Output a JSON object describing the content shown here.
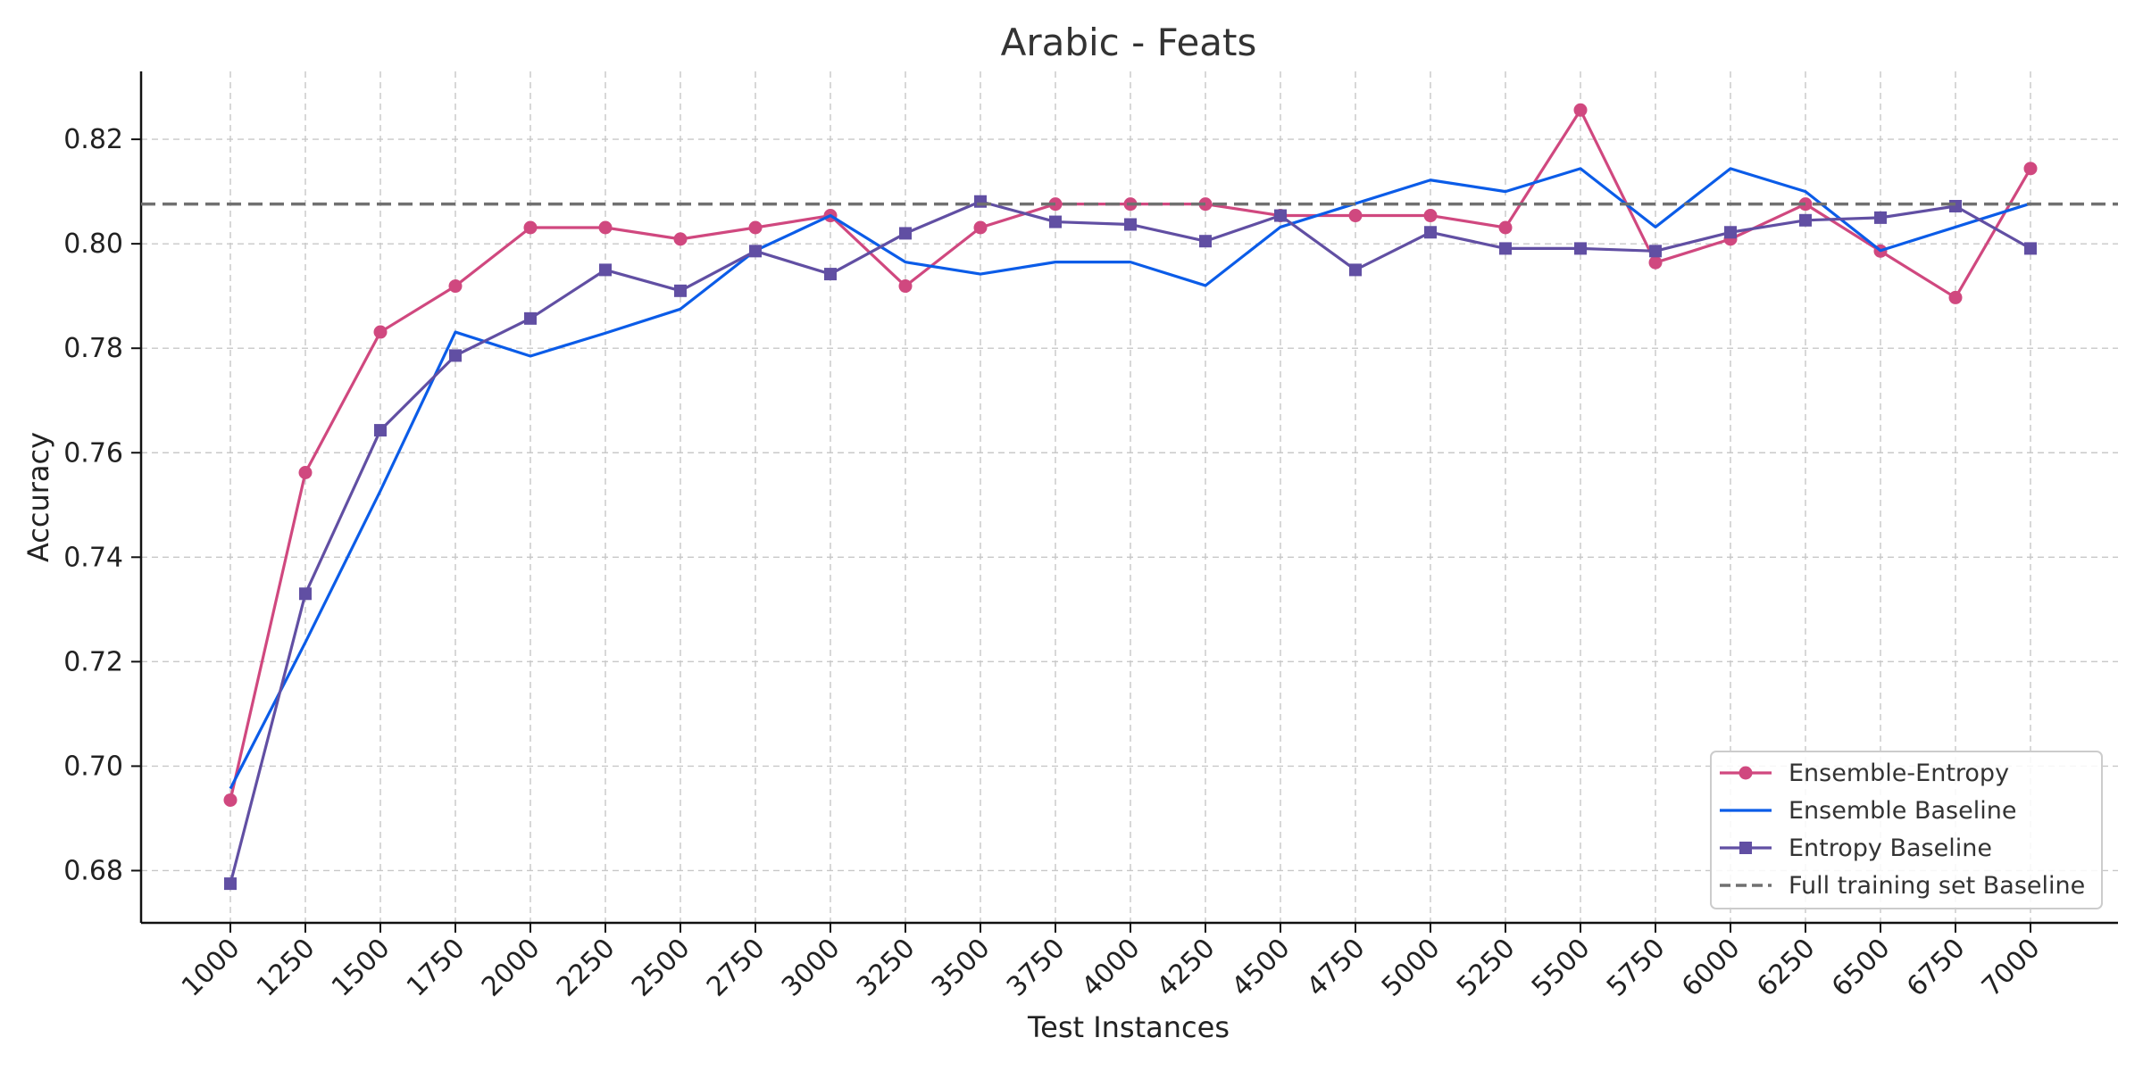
{
  "chart_data": {
    "type": "line",
    "title": "Arabic - Feats",
    "xlabel": "Test Instances",
    "ylabel": "Accuracy",
    "x": [
      1000,
      1250,
      1500,
      1750,
      2000,
      2250,
      2500,
      2750,
      3000,
      3250,
      3500,
      3750,
      4000,
      4250,
      4500,
      4750,
      5000,
      5250,
      5500,
      5750,
      6000,
      6250,
      6500,
      6750,
      7000
    ],
    "x_tick_labels": [
      "1000",
      "1250",
      "1500",
      "1750",
      "2000",
      "2250",
      "2500",
      "2750",
      "3000",
      "3250",
      "3500",
      "3750",
      "4000",
      "4250",
      "4500",
      "4750",
      "5000",
      "5250",
      "5500",
      "5750",
      "6000",
      "6250",
      "6500",
      "6750",
      "7000"
    ],
    "ylim": [
      0.67,
      0.833
    ],
    "y_ticks": [
      0.68,
      0.7,
      0.72,
      0.74,
      0.76,
      0.78,
      0.8,
      0.82
    ],
    "y_tick_labels": [
      "0.68",
      "0.70",
      "0.72",
      "0.74",
      "0.76",
      "0.78",
      "0.80",
      "0.82"
    ],
    "grid": true,
    "legend_position": "bottom-right",
    "series": [
      {
        "name": "Ensemble-Entropy",
        "color": "#d0487f",
        "marker": "circle",
        "values": [
          0.6935,
          0.7562,
          0.7831,
          0.7919,
          0.8031,
          0.8031,
          0.8009,
          0.8031,
          0.8054,
          0.7919,
          0.8031,
          0.8076,
          0.8076,
          0.8076,
          0.8054,
          0.8054,
          0.8054,
          0.8031,
          0.8256,
          0.7964,
          0.8009,
          0.8076,
          0.7986,
          0.7897,
          0.8144
        ]
      },
      {
        "name": "Ensemble Baseline",
        "color": "#0b5ce8",
        "marker": "none",
        "values": [
          0.6957,
          0.7237,
          0.7527,
          0.7831,
          0.7785,
          0.7829,
          0.7875,
          0.7987,
          0.8054,
          0.7965,
          0.7942,
          0.7965,
          0.7965,
          0.792,
          0.8032,
          0.8077,
          0.8122,
          0.81,
          0.8144,
          0.8032,
          0.8144,
          0.81,
          0.7987,
          0.8032,
          0.8077
        ]
      },
      {
        "name": "Entropy Baseline",
        "color": "#614fa3",
        "marker": "square",
        "values": [
          0.6775,
          0.733,
          0.7643,
          0.7786,
          0.7857,
          0.795,
          0.791,
          0.7986,
          0.7942,
          0.802,
          0.8081,
          0.8042,
          0.8037,
          0.8005,
          0.8054,
          0.795,
          0.8022,
          0.7991,
          0.7991,
          0.7986,
          0.8022,
          0.8045,
          0.805,
          0.8072,
          0.7991
        ]
      },
      {
        "name": "Full training set Baseline",
        "color": "#707070",
        "marker": "none",
        "dashed": true,
        "constant": 0.8076
      }
    ]
  }
}
